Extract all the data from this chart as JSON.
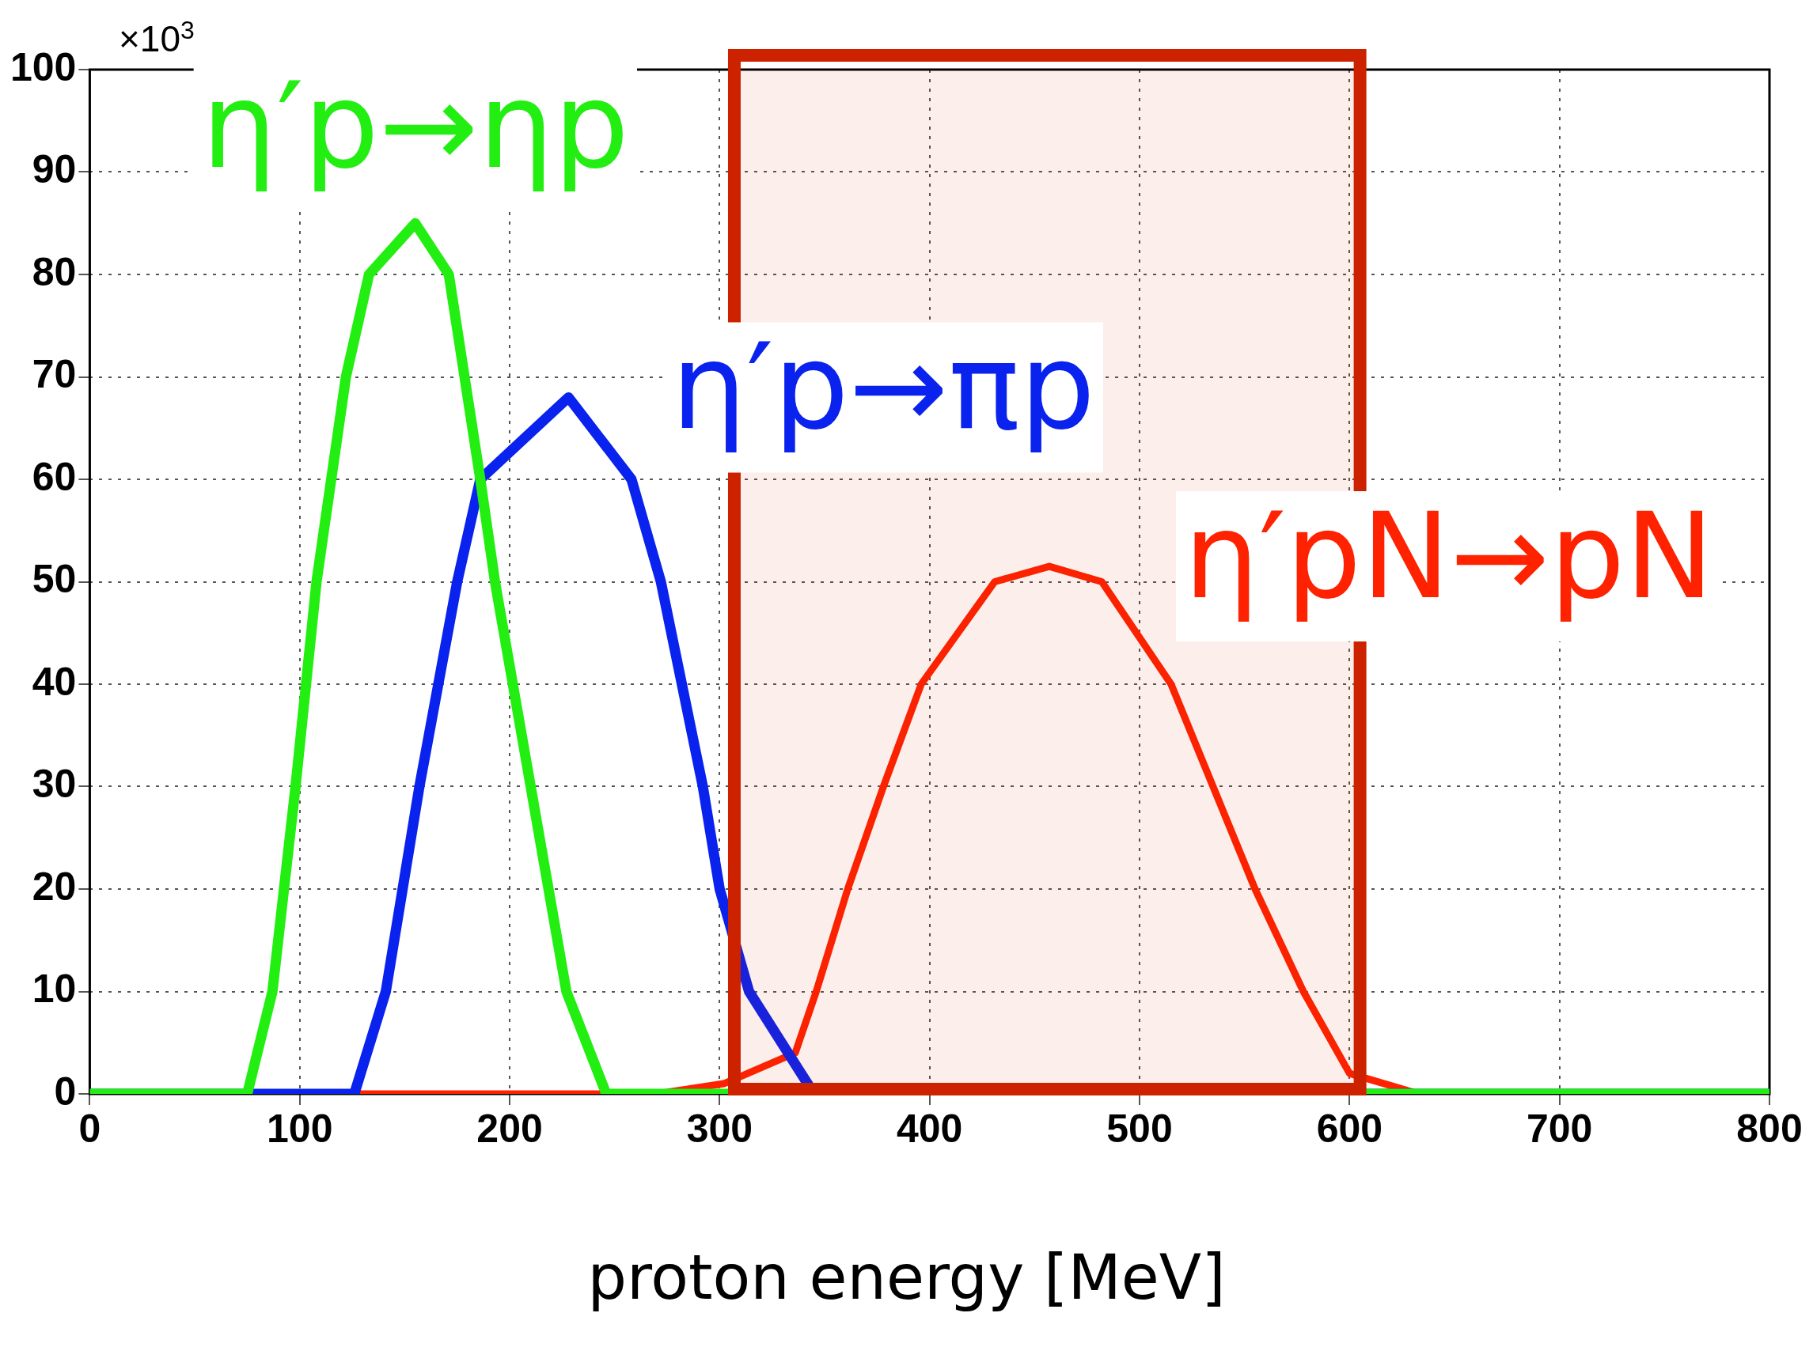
{
  "chart_data": {
    "type": "line",
    "xlabel": "proton energy [MeV]",
    "ylabel": "×10$^{3}$",
    "xlim": [
      0,
      800
    ],
    "xticks": [
      0,
      100,
      200,
      300,
      400,
      500,
      600,
      700,
      800
    ],
    "ylim": [
      0,
      100
    ],
    "yticks": [
      0,
      10,
      20,
      30,
      40,
      50,
      60,
      70,
      80,
      90,
      100
    ],
    "grid": true,
    "legend": false,
    "marker": "none",
    "line_style": "solid",
    "series": [
      {
        "name": "η′p→ηp",
        "color": "#22ee11",
        "x": [
          0,
          75,
          87,
          98,
          108,
          122,
          133,
          155,
          171,
          186,
          193,
          210,
          227,
          246,
          800
        ],
        "values": [
          0,
          0,
          10,
          30,
          50,
          70,
          80,
          85,
          80,
          60,
          50,
          30,
          10,
          0,
          0
        ]
      },
      {
        "name": "η′p→πp",
        "color": "#0a22ee",
        "x": [
          0,
          126,
          141,
          157,
          175,
          186,
          228,
          258,
          272,
          292,
          300,
          314,
          345,
          800
        ],
        "values": [
          0,
          0,
          10,
          30,
          50,
          60,
          68,
          60,
          50,
          30,
          20,
          10,
          0,
          0
        ]
      },
      {
        "name": "η′pN→pN",
        "color": "#ff2200",
        "x": [
          0,
          270,
          302,
          336,
          346,
          361,
          378,
          396,
          431,
          457,
          482,
          515,
          535,
          555,
          578,
          600,
          633,
          800
        ],
        "values": [
          0,
          0,
          1,
          4,
          10,
          20,
          30,
          40,
          50,
          51.5,
          50,
          40,
          30,
          20,
          10,
          2,
          0,
          0
        ]
      }
    ],
    "bands": [
      {
        "axis": "x",
        "from": 307,
        "to": 605,
        "color": "#cc2200"
      }
    ]
  }
}
